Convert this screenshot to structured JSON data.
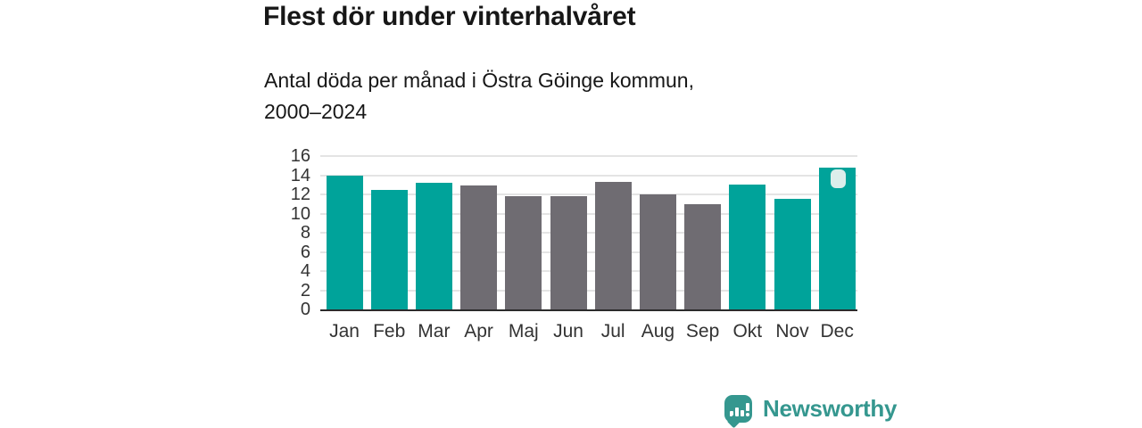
{
  "colors": {
    "bar_teal": "#00a39a",
    "bar_gray": "#6f6c72",
    "highlight_marker": "#dceeeb",
    "gridline": "#e4e4e4",
    "axis_line": "#2b2b2b",
    "text_dark": "#171717",
    "axis_text": "#333333",
    "brand_teal": "#35978f"
  },
  "chart_data": {
    "type": "bar",
    "title": "Flest dör under vinterhalvåret",
    "subtitle_lines": [
      "Antal döda per månad i Östra Göinge kommun,",
      "2000–2024"
    ],
    "categories": [
      "Jan",
      "Feb",
      "Mar",
      "Apr",
      "Maj",
      "Jun",
      "Jul",
      "Aug",
      "Sep",
      "Okt",
      "Nov",
      "Dec"
    ],
    "values": [
      14.0,
      12.5,
      13.2,
      12.9,
      11.8,
      11.8,
      13.3,
      12.0,
      11.0,
      13.0,
      11.5,
      14.8
    ],
    "bar_colors": [
      "teal",
      "teal",
      "teal",
      "gray",
      "gray",
      "gray",
      "gray",
      "gray",
      "gray",
      "teal",
      "teal",
      "teal"
    ],
    "xlabel": "",
    "ylabel": "",
    "ylim": [
      0,
      16
    ],
    "yticks": [
      0,
      2,
      4,
      6,
      8,
      10,
      12,
      14,
      16
    ],
    "grid": "horizontal",
    "legend": "none",
    "highlight_month": "Dec"
  },
  "branding": {
    "name": "Newsworthy",
    "icon": "newsworthy-speech-bubble-bar-chart-icon"
  }
}
